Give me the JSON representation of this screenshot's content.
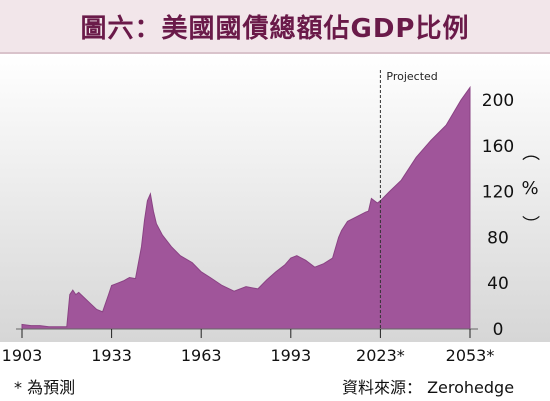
{
  "title": "圖六：美國國債總額佔GDP比例",
  "source_note": "資料來源： Zerohedge",
  "footnote": "* 為預測",
  "colors": {
    "area": "#a0559a",
    "area_edge": "#8a4384",
    "title": "#6a1a49",
    "title_bg": "#f2e6ea",
    "chart_bg_top": "#ffffff",
    "chart_bg_bottom": "#dcdcdc"
  },
  "chart_data": {
    "type": "area",
    "x_ticks": [
      "1903",
      "1933",
      "1963",
      "1993",
      "2023*",
      "2053*"
    ],
    "y_ticks": [
      "0",
      "40",
      "80",
      "120",
      "160",
      "200"
    ],
    "y_unit_label": "（%）",
    "ylim": [
      0,
      215
    ],
    "xlim": [
      1903,
      2053
    ],
    "projection_start": 2023,
    "projection_label": "Projected",
    "legend": "none",
    "grid": false,
    "x": [
      1903,
      1906,
      1909,
      1912,
      1915,
      1918,
      1919,
      1920,
      1921,
      1922,
      1924,
      1926,
      1928,
      1930,
      1932,
      1933,
      1935,
      1937,
      1939,
      1941,
      1943,
      1944,
      1945,
      1946,
      1947,
      1948,
      1950,
      1953,
      1956,
      1960,
      1963,
      1966,
      1970,
      1974,
      1978,
      1982,
      1985,
      1988,
      1991,
      1993,
      1995,
      1998,
      2001,
      2004,
      2007,
      2009,
      2010,
      2012,
      2015,
      2018,
      2019,
      2020,
      2021,
      2022,
      2023,
      2026,
      2030,
      2035,
      2040,
      2045,
      2050,
      2053
    ],
    "values": [
      4,
      3,
      3,
      2,
      2,
      2,
      30,
      34,
      30,
      32,
      27,
      22,
      17,
      15,
      30,
      38,
      40,
      42,
      45,
      44,
      72,
      95,
      112,
      118,
      103,
      92,
      82,
      72,
      64,
      58,
      50,
      45,
      38,
      33,
      37,
      35,
      43,
      50,
      56,
      62,
      64,
      60,
      54,
      57,
      62,
      80,
      86,
      94,
      98,
      102,
      103,
      114,
      112,
      110,
      112,
      120,
      130,
      150,
      165,
      178,
      200,
      211
    ]
  }
}
